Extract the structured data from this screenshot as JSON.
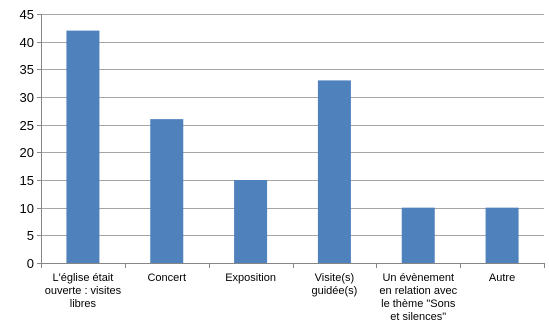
{
  "chart_data": {
    "type": "bar",
    "categories": [
      [
        "L'église était",
        "ouverte : visites",
        "libres"
      ],
      [
        "Concert"
      ],
      [
        "Exposition"
      ],
      [
        "Visite(s)",
        "guidée(s)"
      ],
      [
        "Un évènement",
        "en relation avec",
        "le thème \"Sons",
        "et silences\""
      ],
      [
        "Autre"
      ]
    ],
    "values": [
      42,
      26,
      15,
      33,
      10,
      10
    ],
    "ylim": [
      0,
      45
    ],
    "yticks": [
      0,
      5,
      10,
      15,
      20,
      25,
      30,
      35,
      40,
      45
    ],
    "grid": true,
    "legend": "none",
    "title": "",
    "xlabel": "",
    "ylabel": "",
    "bar_color": "#4F81BD",
    "grid_color": "#A6A6A6",
    "axis_color": "#868686"
  }
}
